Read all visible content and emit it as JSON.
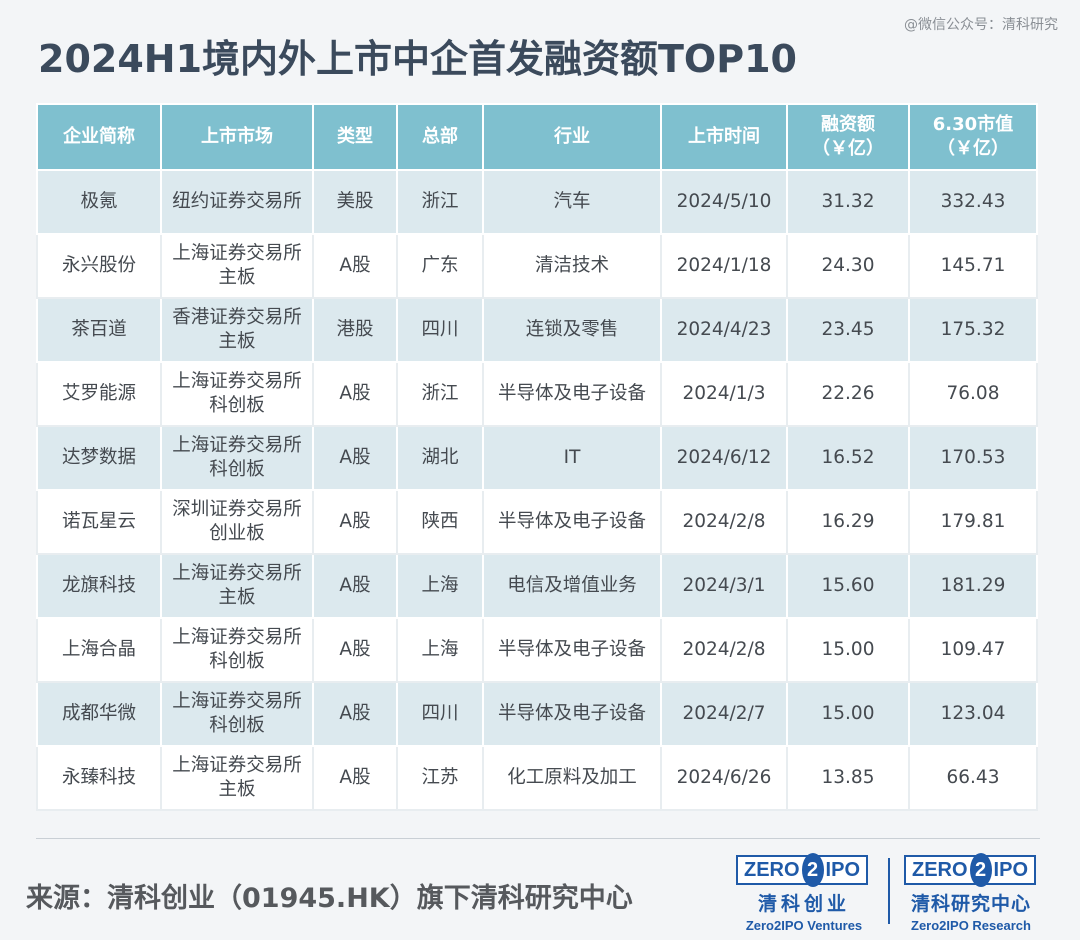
{
  "watermark": "@微信公众号：清科研究",
  "title": "2024H1境内外上市中企首发融资额TOP10",
  "table": {
    "headers": [
      "企业简称",
      "上市市场",
      "类型",
      "总部",
      "行业",
      "上市时间",
      "融资额\n（￥亿）",
      "6.30市值\n（￥亿）"
    ],
    "rows": [
      [
        "极氪",
        "纽约证券交易所",
        "美股",
        "浙江",
        "汽车",
        "2024/5/10",
        "31.32",
        "332.43"
      ],
      [
        "永兴股份",
        "上海证券交易所\n主板",
        "A股",
        "广东",
        "清洁技术",
        "2024/1/18",
        "24.30",
        "145.71"
      ],
      [
        "茶百道",
        "香港证券交易所\n主板",
        "港股",
        "四川",
        "连锁及零售",
        "2024/4/23",
        "23.45",
        "175.32"
      ],
      [
        "艾罗能源",
        "上海证券交易所\n科创板",
        "A股",
        "浙江",
        "半导体及电子设备",
        "2024/1/3",
        "22.26",
        "76.08"
      ],
      [
        "达梦数据",
        "上海证券交易所\n科创板",
        "A股",
        "湖北",
        "IT",
        "2024/6/12",
        "16.52",
        "170.53"
      ],
      [
        "诺瓦星云",
        "深圳证券交易所\n创业板",
        "A股",
        "陕西",
        "半导体及电子设备",
        "2024/2/8",
        "16.29",
        "179.81"
      ],
      [
        "龙旗科技",
        "上海证券交易所\n主板",
        "A股",
        "上海",
        "电信及增值业务",
        "2024/3/1",
        "15.60",
        "181.29"
      ],
      [
        "上海合晶",
        "上海证券交易所\n科创板",
        "A股",
        "上海",
        "半导体及电子设备",
        "2024/2/8",
        "15.00",
        "109.47"
      ],
      [
        "成都华微",
        "上海证券交易所\n科创板",
        "A股",
        "四川",
        "半导体及电子设备",
        "2024/2/7",
        "15.00",
        "123.04"
      ],
      [
        "永臻科技",
        "上海证券交易所\n主板",
        "A股",
        "江苏",
        "化工原料及加工",
        "2024/6/26",
        "13.85",
        "66.43"
      ]
    ]
  },
  "footer": {
    "source": "来源：清科创业（01945.HK）旗下清科研究中心",
    "logo_left": {
      "mark_a": "ZERO",
      "mark_2": "2",
      "mark_b": "IPO",
      "cn": "清科创业",
      "en": "Zero2IPO Ventures"
    },
    "logo_right": {
      "mark_a": "ZERO",
      "mark_2": "2",
      "mark_b": "IPO",
      "cn": "清科研究中心",
      "en": "Zero2IPO Research"
    }
  },
  "colors": {
    "header_bg": "#7fc0cf",
    "odd_row": "#dce9ee",
    "brand_blue": "#1f5aa8"
  }
}
